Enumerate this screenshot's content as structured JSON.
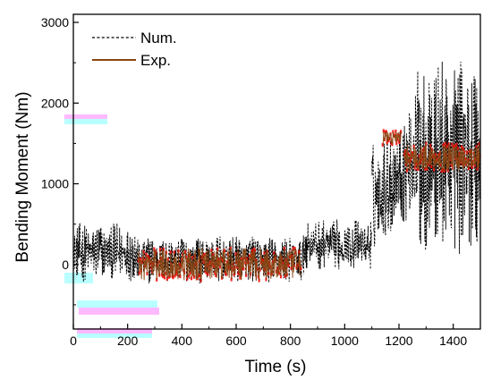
{
  "chart_data": {
    "type": "line",
    "xlabel": "Time (s)",
    "ylabel": "Bending Moment (Nm)",
    "xlim": [
      0,
      1500
    ],
    "ylim": [
      -800,
      3100
    ],
    "x_ticks": [
      0,
      200,
      400,
      600,
      800,
      1000,
      1200,
      1400
    ],
    "y_ticks": [
      0,
      1000,
      2000,
      3000
    ],
    "grid": false,
    "legend_position": "top-left",
    "series": [
      {
        "name": "Num.",
        "style": "dashed",
        "color": "#000000",
        "segments": [
          {
            "x_start": 0,
            "x_end": 230,
            "center": 150,
            "amplitude": 380
          },
          {
            "x_start": 230,
            "x_end": 850,
            "center": 60,
            "amplitude": 300
          },
          {
            "x_start": 850,
            "x_end": 1100,
            "center": 250,
            "amplitude": 320
          },
          {
            "x_start": 1100,
            "x_end": 1250,
            "center": 800,
            "amplitude": 700
          },
          {
            "x_start": 1250,
            "x_end": 1500,
            "center": 1350,
            "amplitude": 1300
          }
        ]
      },
      {
        "name": "Exp.",
        "style": "solid",
        "color": "#8b4513",
        "marker_color": "#ff0000",
        "segments": [
          {
            "x_start": 240,
            "x_end": 840,
            "center": 0,
            "amplitude": 200
          },
          {
            "x_start": 1140,
            "x_end": 1210,
            "center": 1570,
            "amplitude": 90
          },
          {
            "x_start": 1220,
            "x_end": 1500,
            "center": 1330,
            "amplitude": 170
          }
        ]
      }
    ]
  },
  "colors": {
    "num_line": "#000000",
    "exp_line": "#8b4513",
    "exp_marker": "#ff0000",
    "artifact_cyan": "#66ffff",
    "artifact_magenta": "#ff66ff"
  }
}
